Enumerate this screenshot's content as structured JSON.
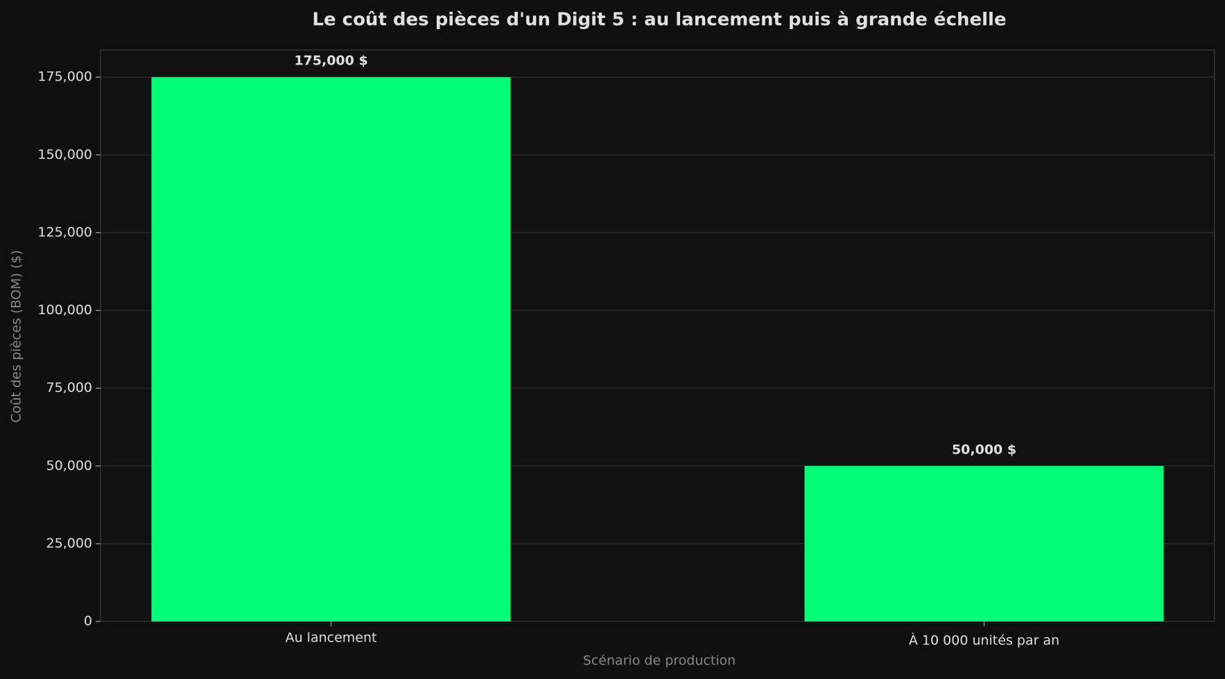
{
  "chart_data": {
    "type": "bar",
    "title": "Le coût des pièces d'un Digit 5 : au lancement puis à grande échelle",
    "x_label": "Scénario de production",
    "y_label": "Coût des pièces (BOM) ($)",
    "categories": [
      "Au lancement",
      "À 10 000 unités par an"
    ],
    "values": [
      175000,
      50000
    ],
    "value_labels": [
      "175,000 $",
      "50,000 $"
    ],
    "color": "#00ff75",
    "ylim": [
      0,
      183750
    ],
    "yticks": [
      0,
      {
        "value": 25000,
        "label": "25,000"
      },
      {
        "value": 50000,
        "label": "50,000"
      },
      {
        "value": 75000,
        "label": "75,000"
      },
      {
        "value": 100000,
        "label": "100,000"
      },
      {
        "value": 125000,
        "label": "125,000"
      },
      {
        "value": 150000,
        "label": "150,000"
      },
      {
        "value": 175000,
        "label": "175,000"
      }
    ],
    "grid": true
  }
}
